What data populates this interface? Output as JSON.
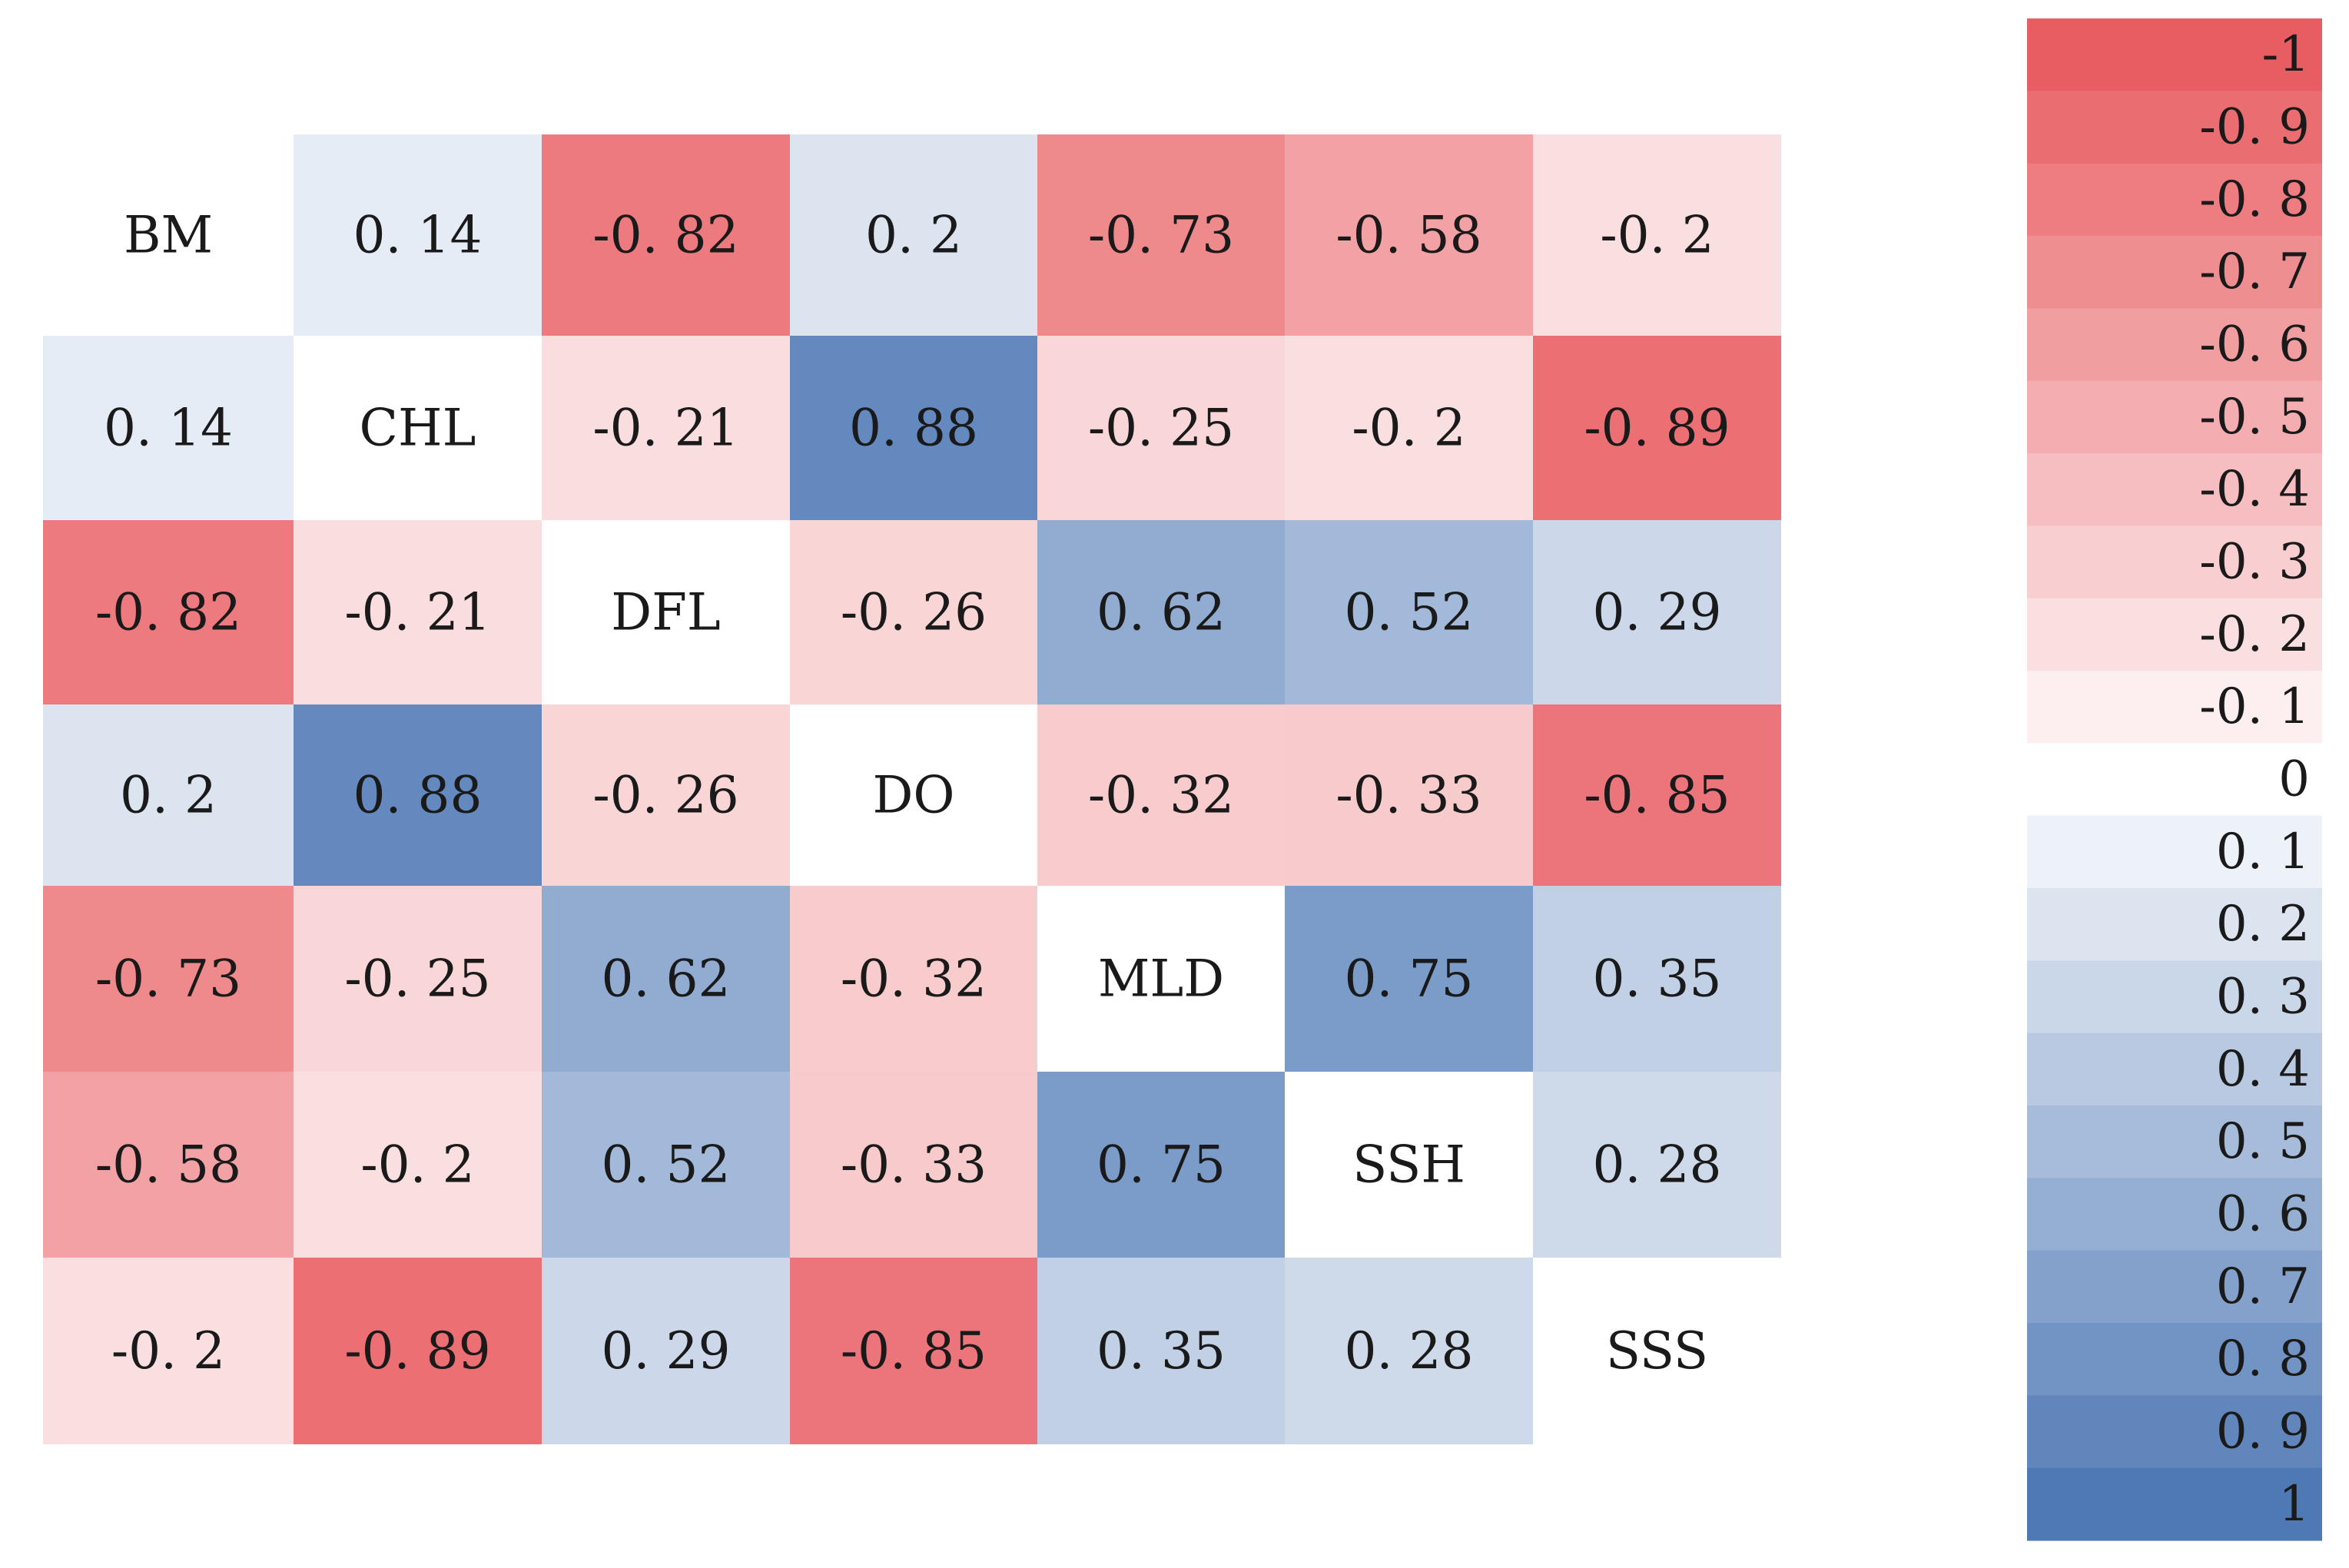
{
  "chart_data": {
    "type": "heatmap",
    "title": "",
    "variables": [
      "BM",
      "CHL",
      "DFL",
      "DO",
      "MLD",
      "SSH",
      "SSS"
    ],
    "matrix": [
      [
        null,
        0.14,
        -0.82,
        0.2,
        -0.73,
        -0.58,
        -0.2
      ],
      [
        0.14,
        null,
        -0.21,
        0.88,
        -0.25,
        -0.2,
        -0.89
      ],
      [
        -0.82,
        -0.21,
        null,
        -0.26,
        0.62,
        0.52,
        0.29
      ],
      [
        0.2,
        0.88,
        -0.26,
        null,
        -0.32,
        -0.33,
        -0.85
      ],
      [
        -0.73,
        -0.25,
        0.62,
        -0.32,
        null,
        0.75,
        0.35
      ],
      [
        -0.58,
        -0.2,
        0.52,
        -0.33,
        0.75,
        null,
        0.28
      ],
      [
        -0.2,
        -0.89,
        0.29,
        -0.85,
        0.35,
        0.28,
        null
      ]
    ],
    "cell_labels": [
      [
        "BM",
        "0. 14",
        "-0. 82",
        "0. 2",
        "-0. 73",
        "-0. 58",
        "-0. 2"
      ],
      [
        "0. 14",
        "CHL",
        "-0. 21",
        "0. 88",
        "-0. 25",
        "-0. 2",
        "-0. 89"
      ],
      [
        "-0. 82",
        "-0. 21",
        "DFL",
        "-0. 26",
        "0. 62",
        "0. 52",
        "0. 29"
      ],
      [
        "0. 2",
        "0. 88",
        "-0. 26",
        "DO",
        "-0. 32",
        "-0. 33",
        "-0. 85"
      ],
      [
        "-0. 73",
        "-0. 25",
        "0. 62",
        "-0. 32",
        "MLD",
        "0. 75",
        "0. 35"
      ],
      [
        "-0. 58",
        "-0. 2",
        "0. 52",
        "-0. 33",
        "0. 75",
        "SSH",
        "0. 28"
      ],
      [
        "-0. 2",
        "-0. 89",
        "0. 29",
        "-0. 85",
        "0. 35",
        "0. 28",
        "SSS"
      ]
    ],
    "value_range": [
      -1,
      1
    ],
    "colorbar": {
      "position": "right",
      "ticks": [
        -1,
        -0.9,
        -0.8,
        -0.7,
        -0.6,
        -0.5,
        -0.4,
        -0.3,
        -0.2,
        -0.1,
        0,
        0.1,
        0.2,
        0.3,
        0.4,
        0.5,
        0.6,
        0.7,
        0.8,
        0.9,
        1
      ],
      "tick_labels": [
        "-1",
        "-0. 9",
        "-0. 8",
        "-0. 7",
        "-0. 6",
        "-0. 5",
        "-0. 4",
        "-0. 3",
        "-0. 2",
        "-0. 1",
        "0",
        "0. 1",
        "0. 2",
        "0. 3",
        "0. 4",
        "0. 5",
        "0. 6",
        "0. 7",
        "0. 8",
        "0. 9",
        "1"
      ]
    },
    "colors": {
      "negative": "#e85d62",
      "neutral": "#ffffff",
      "positive": "#4f79b5",
      "text": "#1a1a1a"
    },
    "grid": false
  }
}
